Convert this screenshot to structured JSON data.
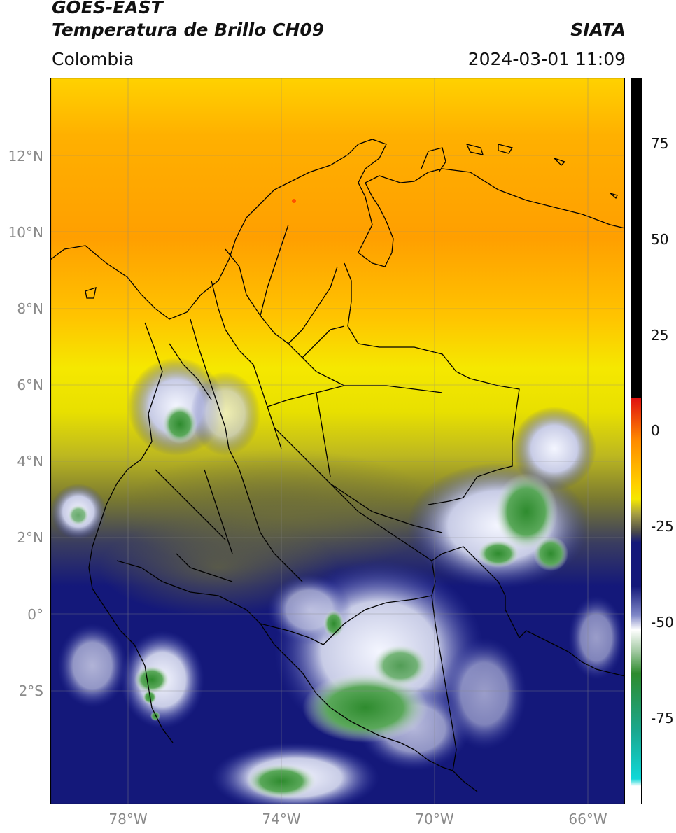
{
  "header": {
    "satellite": "GOES-EAST",
    "product": "Temperatura de Brillo CH09",
    "agency": "SIATA",
    "region": "Colombia",
    "timestamp": "2024-03-01 11:09"
  },
  "map": {
    "lat_labels": [
      "12°N",
      "10°N",
      "8°N",
      "6°N",
      "4°N",
      "2°N",
      "0°",
      "2°S"
    ],
    "lon_labels": [
      "78°W",
      "74°W",
      "70°W",
      "66°W"
    ],
    "grid": true,
    "colors": {
      "warm_orange": "#ff9f00",
      "yellow": "#f5e800",
      "olive": "#7a7a30",
      "navy": "#14187a",
      "white_cloud": "#ececf5",
      "green": "#2e8b2e",
      "coast_line": "#000000"
    }
  },
  "colorbar": {
    "ticks": [
      "75",
      "50",
      "25",
      "0",
      "-25",
      "-50",
      "-75"
    ],
    "colors": {
      "black": "#000000",
      "red": "#e01010",
      "yellow": "#f5e800",
      "navy": "#14187a",
      "white": "#ffffff",
      "green": "#2e8b2e",
      "cyan": "#10d8d8"
    }
  }
}
